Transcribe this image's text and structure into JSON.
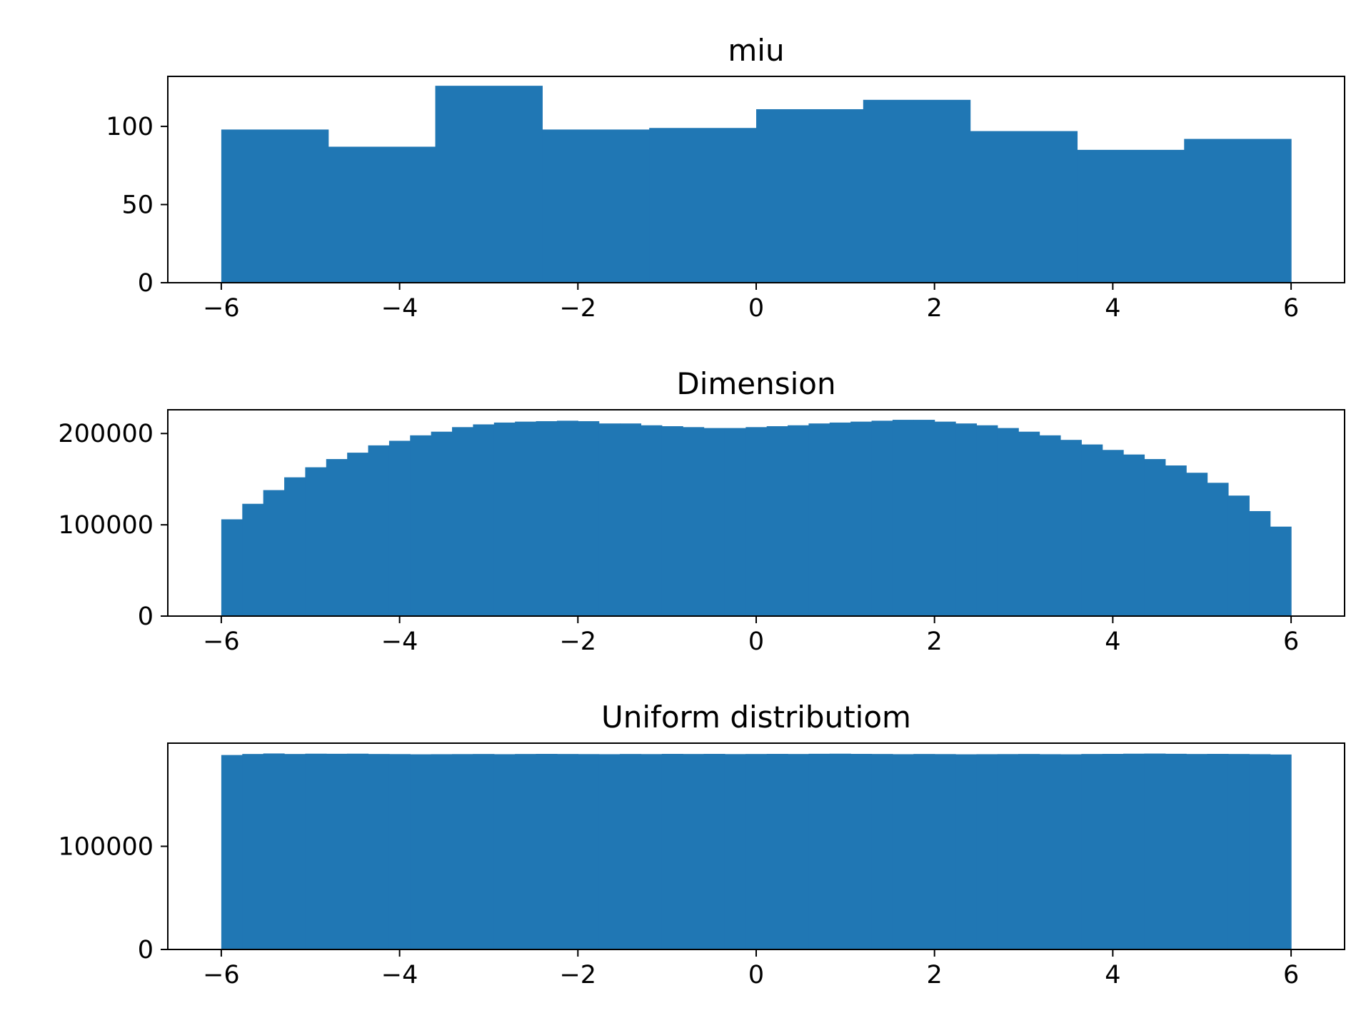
{
  "colors": {
    "bar": "#2077b4",
    "axis": "#000000",
    "background": "#ffffff"
  },
  "chart_data": [
    {
      "type": "bar",
      "histogram": true,
      "title": "miu",
      "xlabel": "",
      "ylabel": "",
      "xlim": [
        -6.6,
        6.6
      ],
      "ylim": [
        0,
        132
      ],
      "xticks": [
        -6,
        -4,
        -2,
        0,
        2,
        4,
        6
      ],
      "xtick_labels": [
        "−6",
        "−4",
        "−2",
        "0",
        "2",
        "4",
        "6"
      ],
      "yticks": [
        0,
        50,
        100
      ],
      "ytick_labels": [
        "0",
        "50",
        "100"
      ],
      "grid": false,
      "bin_edges": [
        -6,
        -4.8,
        -3.6,
        -2.4,
        -1.2,
        0,
        1.2,
        2.4,
        3.6,
        4.8,
        6
      ],
      "values": [
        98,
        87,
        126,
        98,
        99,
        111,
        117,
        97,
        85,
        92
      ]
    },
    {
      "type": "bar",
      "histogram": true,
      "title": "Dimension",
      "xlabel": "",
      "ylabel": "",
      "xlim": [
        -6.6,
        6.6
      ],
      "ylim": [
        0,
        226000
      ],
      "xticks": [
        -6,
        -4,
        -2,
        0,
        2,
        4,
        6
      ],
      "xtick_labels": [
        "−6",
        "−4",
        "−2",
        "0",
        "2",
        "4",
        "6"
      ],
      "yticks": [
        0,
        100000,
        200000
      ],
      "ytick_labels": [
        "0",
        "100000",
        "200000"
      ],
      "grid": false,
      "bin_range": [
        -6,
        6
      ],
      "values": [
        106000,
        123000,
        138000,
        152000,
        163000,
        172000,
        179000,
        187000,
        192000,
        198000,
        202000,
        207000,
        210000,
        212000,
        213000,
        213500,
        214000,
        213500,
        211000,
        211000,
        209000,
        208000,
        207000,
        206000,
        206000,
        207000,
        208000,
        209000,
        211000,
        212000,
        213000,
        214000,
        215000,
        215000,
        213000,
        211000,
        209000,
        206000,
        202000,
        198000,
        193000,
        188000,
        182000,
        177000,
        172000,
        165000,
        157000,
        146000,
        132000,
        115000,
        98000
      ]
    },
    {
      "type": "bar",
      "histogram": true,
      "title": "Uniform distributiom",
      "xlabel": "",
      "ylabel": "",
      "xlim": [
        -6.6,
        6.6
      ],
      "ylim": [
        0,
        200000
      ],
      "xticks": [
        -6,
        -4,
        -2,
        0,
        2,
        4,
        6
      ],
      "xtick_labels": [
        "−6",
        "−4",
        "−2",
        "0",
        "2",
        "4",
        "6"
      ],
      "yticks": [
        0,
        100000
      ],
      "ytick_labels": [
        "0",
        "100000"
      ],
      "grid": false,
      "bin_range": [
        -6,
        6
      ],
      "values": [
        188500,
        189500,
        190000,
        189500,
        189800,
        189700,
        189800,
        189500,
        189400,
        189200,
        189300,
        189400,
        189500,
        189300,
        189500,
        189600,
        189500,
        189400,
        189300,
        189500,
        189400,
        189600,
        189500,
        189600,
        189400,
        189500,
        189600,
        189500,
        189700,
        189800,
        189600,
        189500,
        189300,
        189500,
        189400,
        189200,
        189300,
        189400,
        189500,
        189300,
        189200,
        189500,
        189600,
        189800,
        189900,
        189700,
        189500,
        189600,
        189500,
        189300,
        189000
      ]
    }
  ]
}
